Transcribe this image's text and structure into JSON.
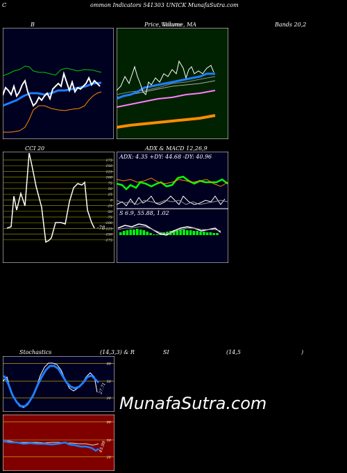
{
  "header": {
    "title": "ommon  Indicators 541303 UNICK MunafaSutra.com",
    "prefix": "C"
  },
  "bands": {
    "label_b": "B",
    "label_right": "Bands 20,2"
  },
  "price_ma": {
    "label": "Price,  Volume,  MA",
    "label_overlay": "Volume"
  },
  "cci": {
    "label": "CCI 20",
    "ticks": [
      "175",
      "150",
      "125",
      "100",
      "75",
      "50",
      "25",
      "0",
      "-25",
      "-50",
      "-75",
      "-100",
      "-125",
      "-150",
      "-175"
    ],
    "last_value": "-78"
  },
  "adx_macd": {
    "label": "ADX  & MACD 12,26,9",
    "adx_text": "ADX: 4.35  +DY: 44.68  -DY: 40.96",
    "macd_text": "S                 6.9,  55.88,  1.02"
  },
  "stoch": {
    "label_left": "Stochastics",
    "label_mid": "(14,3,3) & R",
    "label_si": "SI",
    "label_rsi_params": "(14,5",
    "label_close": ")",
    "ticks": [
      "80",
      "50",
      "20"
    ],
    "last_value": "27.71"
  },
  "rsi": {
    "ticks": [
      "80",
      "50",
      "20"
    ],
    "last_value": "45.99"
  },
  "watermark": "MunafaSutra.com",
  "colors": {
    "bands_bg": "#000020",
    "price_bg": "#002200",
    "cci_bg": "#000000",
    "adx_bg": "#000020",
    "stoch_bg": "#000020",
    "rsi_bg": "#800000",
    "green": "#00ff00",
    "blue": "#1e7fff",
    "orange": "#ff8c00",
    "pink": "#ff80ff"
  }
}
